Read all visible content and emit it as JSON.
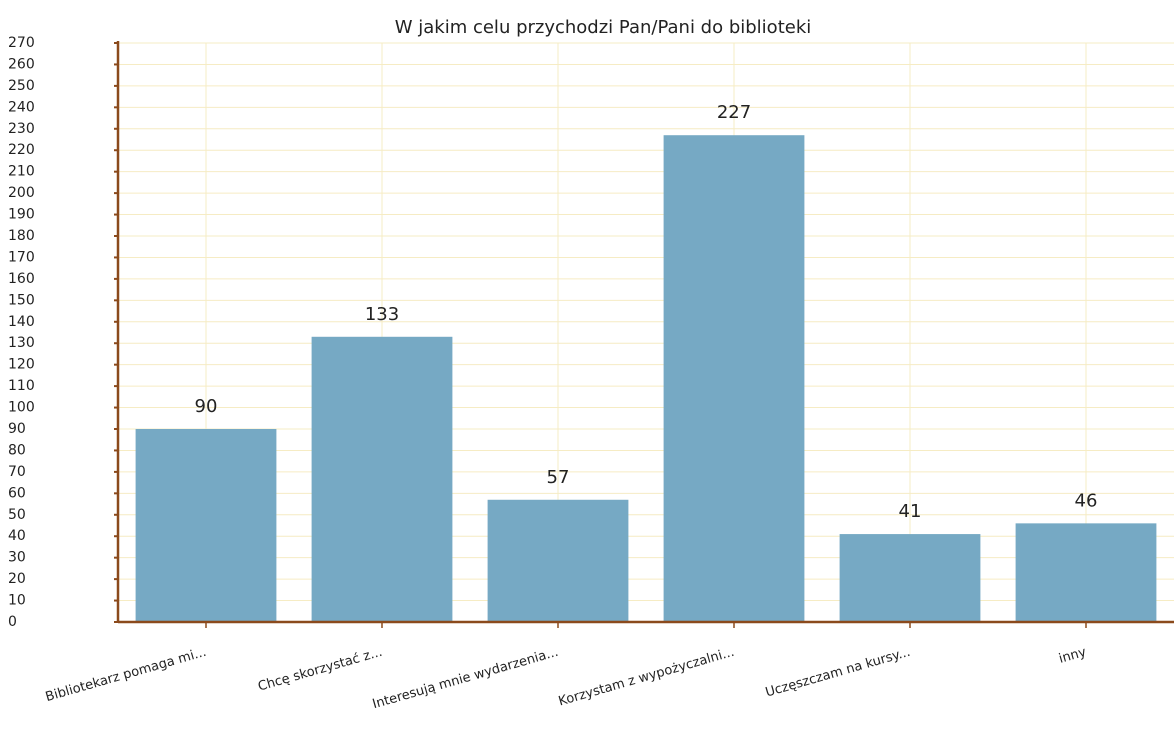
{
  "chart_data": {
    "type": "bar",
    "title": "W jakim celu przychodzi Pan/Pani do biblioteki",
    "categories": [
      "Bibliotekarz pomaga mi...",
      "Chcę skorzystać z...",
      "Interesują mnie wydarzenia...",
      "Korzystam z wypożyczalni...",
      "Uczęszczam na kursy...",
      "inny"
    ],
    "values": [
      90,
      133,
      57,
      227,
      41,
      46
    ],
    "color": "#76a9c4",
    "ylim": [
      0,
      270
    ],
    "yticks": [
      0,
      10,
      20,
      30,
      40,
      50,
      60,
      70,
      80,
      90,
      100,
      110,
      120,
      130,
      140,
      150,
      160,
      170,
      180,
      190,
      200,
      210,
      220,
      230,
      240,
      250,
      260,
      270
    ],
    "grid": true
  }
}
